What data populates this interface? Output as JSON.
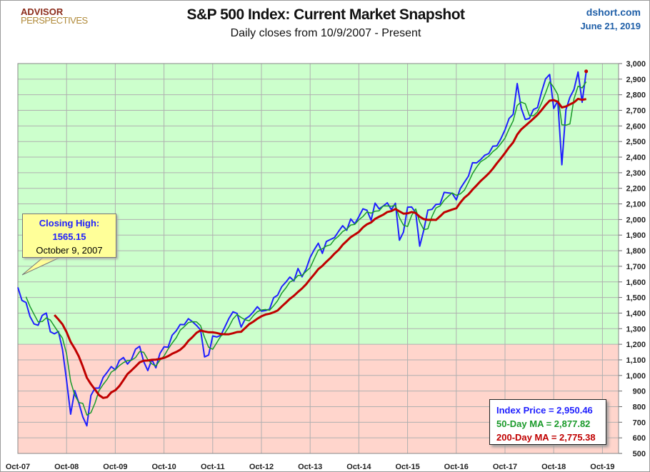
{
  "header": {
    "logo_line1": "ADVISOR",
    "logo_line2": "PERSPECTIVES",
    "site": "dshort.com",
    "date": "June 21, 2019"
  },
  "callout": {
    "label": "Closing High:",
    "value": "1565.15",
    "date": "October 9, 2007"
  },
  "legend_box": {
    "price_label": "Index Price =  2,950.46",
    "ma50_label": "50-Day MA = 2,877.82",
    "ma200_label": "200-Day MA = 2,775.38"
  },
  "colors": {
    "price": "#1f1fff",
    "ma50": "#1a9a2a",
    "ma200": "#c00000",
    "bg_above": "#ccffcc",
    "bg_below": "#ffd5cc"
  },
  "chart_data": {
    "type": "line",
    "title": "S&P 500 Index: Current Market Snapshot",
    "subtitle": "Daily closes from 10/9/2007 - Present",
    "ylim": [
      500,
      3000
    ],
    "y_ticks": [
      "500",
      "600",
      "700",
      "800",
      "900",
      "1,000",
      "1,100",
      "1,200",
      "1,300",
      "1,400",
      "1,500",
      "1,600",
      "1,700",
      "1,800",
      "1,900",
      "2,000",
      "2,100",
      "2,200",
      "2,300",
      "2,400",
      "2,500",
      "2,600",
      "2,700",
      "2,800",
      "2,900",
      "3,000"
    ],
    "x_ticks": [
      "Oct-07",
      "Oct-08",
      "Oct-09",
      "Oct-10",
      "Oct-11",
      "Oct-12",
      "Oct-13",
      "Oct-14",
      "Oct-15",
      "Oct-16",
      "Oct-17",
      "Oct-18",
      "Oct-19"
    ],
    "shading_threshold": 1200,
    "grid": true,
    "series": [
      {
        "name": "Index Price",
        "x_start": "2007-10",
        "x_step": "month",
        "values": [
          1565,
          1481,
          1468,
          1378,
          1330,
          1322,
          1385,
          1400,
          1280,
          1267,
          1282,
          1166,
          968,
          752,
          903,
          825,
          735,
          677,
          872,
          919,
          919,
          987,
          1020,
          1057,
          1036,
          1096,
          1115,
          1073,
          1104,
          1169,
          1187,
          1089,
          1031,
          1102,
          1049,
          1141,
          1183,
          1181,
          1258,
          1286,
          1327,
          1326,
          1364,
          1345,
          1321,
          1292,
          1119,
          1131,
          1253,
          1247,
          1258,
          1312,
          1366,
          1408,
          1398,
          1310,
          1362,
          1379,
          1407,
          1441,
          1412,
          1416,
          1426,
          1498,
          1515,
          1569,
          1598,
          1631,
          1606,
          1686,
          1633,
          1682,
          1757,
          1806,
          1848,
          1783,
          1859,
          1872,
          1884,
          1924,
          1960,
          1931,
          2003,
          1972,
          2018,
          2068,
          2059,
          1995,
          2105,
          2068,
          2086,
          2107,
          2063,
          2104,
          1867,
          1920,
          2079,
          2080,
          2044,
          1829,
          1932,
          2060,
          2065,
          2097,
          2099,
          2174,
          2171,
          2168,
          2126,
          2199,
          2239,
          2279,
          2364,
          2363,
          2384,
          2412,
          2423,
          2470,
          2472,
          2519,
          2575,
          2648,
          2674,
          2872,
          2714,
          2641,
          2648,
          2705,
          2718,
          2816,
          2902,
          2930,
          2712,
          2760,
          2351,
          2704,
          2784,
          2834,
          2946,
          2752,
          2950
        ]
      }
    ],
    "ma50_last": 2877.82,
    "ma200_last": 2775.38
  }
}
